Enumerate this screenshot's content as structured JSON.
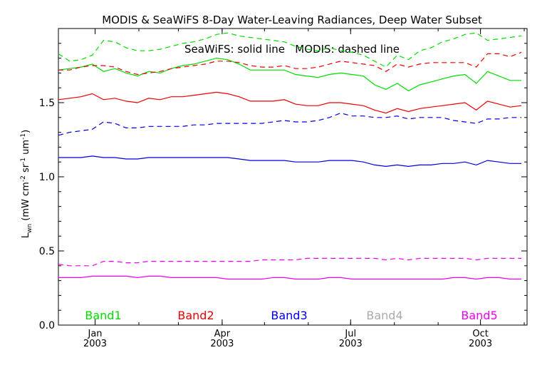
{
  "chart_data": {
    "type": "line",
    "title": "MODIS & SeaWiFS 8-Day Water-Leaving Radiances, Deep Water Subset",
    "annotation": "SeaWiFS: solid line   MODIS: dashed line",
    "ylabel_main": "L",
    "ylabel_sub": "wn",
    "ylabel_units": " (mW cm",
    "ylabel_units_parts": [
      " (mW cm",
      "-2",
      " sr",
      "-1",
      " um",
      "-1",
      ")"
    ],
    "ylim": [
      0,
      2.0
    ],
    "yticks": [
      {
        "value": 0.0,
        "label": "0.0"
      },
      {
        "value": 0.5,
        "label": "0.5"
      },
      {
        "value": 1.0,
        "label": "1.0"
      },
      {
        "value": 1.5,
        "label": "1.5"
      }
    ],
    "xlim": [
      "2002-12-06",
      "2003-11-03"
    ],
    "xticks": [
      {
        "date": "2003-01-01",
        "month": "Jan",
        "year": "2003"
      },
      {
        "date": "2003-04-01",
        "month": "Apr",
        "year": "2003"
      },
      {
        "date": "2003-07-01",
        "month": "Jul",
        "year": "2003"
      },
      {
        "date": "2003-10-01",
        "month": "Oct",
        "year": "2003"
      }
    ],
    "grid": false,
    "dates": [
      "2002-12-06",
      "2002-12-14",
      "2002-12-22",
      "2002-12-30",
      "2003-01-07",
      "2003-01-15",
      "2003-01-23",
      "2003-01-31",
      "2003-02-08",
      "2003-02-16",
      "2003-02-24",
      "2003-03-04",
      "2003-03-12",
      "2003-03-20",
      "2003-03-28",
      "2003-04-05",
      "2003-04-13",
      "2003-04-21",
      "2003-04-29",
      "2003-05-07",
      "2003-05-15",
      "2003-05-23",
      "2003-05-31",
      "2003-06-08",
      "2003-06-16",
      "2003-06-24",
      "2003-07-02",
      "2003-07-10",
      "2003-07-18",
      "2003-07-26",
      "2003-08-03",
      "2003-08-11",
      "2003-08-19",
      "2003-08-27",
      "2003-09-04",
      "2003-09-12",
      "2003-09-20",
      "2003-09-28",
      "2003-10-06",
      "2003-10-14",
      "2003-10-22",
      "2003-10-30"
    ],
    "series": [
      {
        "name": "Band1",
        "color": "#00dd00",
        "style": "solid",
        "values": [
          1.72,
          1.73,
          1.74,
          1.76,
          1.71,
          1.73,
          1.7,
          1.68,
          1.71,
          1.7,
          1.73,
          1.75,
          1.76,
          1.78,
          1.8,
          1.79,
          1.76,
          1.72,
          1.72,
          1.72,
          1.72,
          1.69,
          1.68,
          1.67,
          1.69,
          1.7,
          1.69,
          1.68,
          1.62,
          1.59,
          1.63,
          1.58,
          1.62,
          1.64,
          1.66,
          1.68,
          1.69,
          1.63,
          1.71,
          1.68,
          1.65,
          1.65
        ]
      },
      {
        "name": "Band1",
        "color": "#00dd00",
        "style": "dashed",
        "values": [
          1.83,
          1.78,
          1.79,
          1.82,
          1.92,
          1.91,
          1.87,
          1.85,
          1.85,
          1.86,
          1.88,
          1.9,
          1.91,
          1.93,
          1.96,
          1.97,
          1.95,
          1.94,
          1.93,
          1.92,
          1.91,
          1.88,
          1.86,
          1.85,
          1.87,
          1.85,
          1.84,
          1.82,
          1.78,
          1.74,
          1.82,
          1.79,
          1.85,
          1.87,
          1.91,
          1.93,
          1.96,
          1.97,
          1.92,
          1.93,
          1.94,
          1.95
        ]
      },
      {
        "name": "Band2",
        "color": "#ee0000",
        "style": "solid",
        "values": [
          1.52,
          1.53,
          1.54,
          1.56,
          1.52,
          1.53,
          1.51,
          1.5,
          1.53,
          1.52,
          1.54,
          1.54,
          1.55,
          1.56,
          1.57,
          1.56,
          1.54,
          1.51,
          1.51,
          1.51,
          1.52,
          1.49,
          1.48,
          1.48,
          1.5,
          1.5,
          1.49,
          1.48,
          1.45,
          1.43,
          1.46,
          1.44,
          1.46,
          1.47,
          1.48,
          1.49,
          1.5,
          1.45,
          1.51,
          1.49,
          1.47,
          1.48
        ]
      },
      {
        "name": "Band2",
        "color": "#ee0000",
        "style": "dashed",
        "values": [
          1.72,
          1.72,
          1.74,
          1.75,
          1.75,
          1.74,
          1.71,
          1.69,
          1.7,
          1.71,
          1.73,
          1.74,
          1.75,
          1.76,
          1.78,
          1.78,
          1.77,
          1.75,
          1.74,
          1.74,
          1.75,
          1.73,
          1.73,
          1.74,
          1.76,
          1.78,
          1.77,
          1.76,
          1.75,
          1.71,
          1.76,
          1.74,
          1.76,
          1.77,
          1.77,
          1.77,
          1.77,
          1.74,
          1.83,
          1.83,
          1.81,
          1.84
        ]
      },
      {
        "name": "Band3",
        "color": "#0000dd",
        "style": "solid",
        "values": [
          1.13,
          1.13,
          1.13,
          1.14,
          1.13,
          1.13,
          1.12,
          1.12,
          1.13,
          1.13,
          1.13,
          1.13,
          1.13,
          1.13,
          1.13,
          1.13,
          1.12,
          1.11,
          1.11,
          1.11,
          1.11,
          1.1,
          1.1,
          1.1,
          1.11,
          1.11,
          1.11,
          1.1,
          1.08,
          1.07,
          1.08,
          1.07,
          1.08,
          1.08,
          1.09,
          1.09,
          1.1,
          1.08,
          1.11,
          1.1,
          1.09,
          1.09
        ]
      },
      {
        "name": "Band3",
        "color": "#0000dd",
        "style": "dashed",
        "values": [
          1.28,
          1.3,
          1.31,
          1.32,
          1.37,
          1.36,
          1.33,
          1.33,
          1.34,
          1.34,
          1.34,
          1.34,
          1.35,
          1.35,
          1.36,
          1.36,
          1.36,
          1.36,
          1.36,
          1.37,
          1.38,
          1.37,
          1.37,
          1.38,
          1.4,
          1.43,
          1.41,
          1.41,
          1.4,
          1.4,
          1.41,
          1.39,
          1.4,
          1.4,
          1.4,
          1.38,
          1.37,
          1.36,
          1.39,
          1.39,
          1.4,
          1.4
        ]
      },
      {
        "name": "Band5",
        "color": "#ee00ee",
        "style": "solid",
        "values": [
          0.32,
          0.32,
          0.32,
          0.33,
          0.33,
          0.33,
          0.33,
          0.32,
          0.33,
          0.33,
          0.32,
          0.32,
          0.32,
          0.32,
          0.32,
          0.31,
          0.31,
          0.31,
          0.31,
          0.32,
          0.32,
          0.31,
          0.31,
          0.31,
          0.32,
          0.32,
          0.31,
          0.31,
          0.31,
          0.31,
          0.31,
          0.31,
          0.31,
          0.31,
          0.31,
          0.32,
          0.32,
          0.31,
          0.32,
          0.32,
          0.31,
          0.31
        ]
      },
      {
        "name": "Band5",
        "color": "#ee00ee",
        "style": "dashed",
        "values": [
          0.41,
          0.4,
          0.4,
          0.4,
          0.43,
          0.43,
          0.42,
          0.42,
          0.43,
          0.43,
          0.43,
          0.43,
          0.43,
          0.43,
          0.43,
          0.43,
          0.43,
          0.43,
          0.44,
          0.44,
          0.44,
          0.44,
          0.45,
          0.45,
          0.45,
          0.45,
          0.45,
          0.45,
          0.45,
          0.44,
          0.45,
          0.44,
          0.45,
          0.45,
          0.45,
          0.45,
          0.45,
          0.44,
          0.45,
          0.45,
          0.45,
          0.45
        ]
      }
    ],
    "legend": [
      {
        "label": "Band1",
        "color": "#00dd00"
      },
      {
        "label": "Band2",
        "color": "#ee0000"
      },
      {
        "label": "Band3",
        "color": "#0000dd"
      },
      {
        "label": "Band4",
        "color": "#aaaaaa"
      },
      {
        "label": "Band5",
        "color": "#ee00ee"
      }
    ],
    "legend_placement": "bottom"
  }
}
